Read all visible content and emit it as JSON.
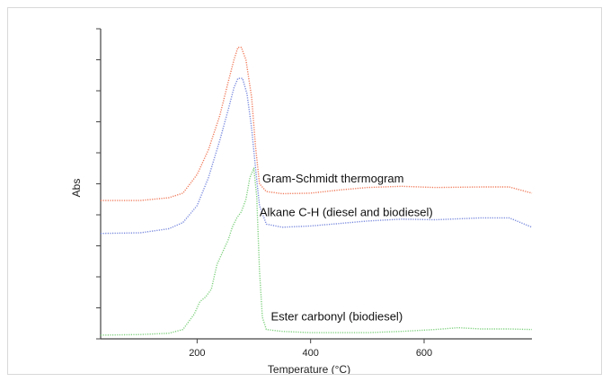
{
  "chart_data": {
    "type": "line",
    "title": "",
    "xlabel": "Temperature (°C)",
    "ylabel": "Abs",
    "xlim": [
      30,
      790
    ],
    "ylim": [
      0,
      1
    ],
    "grid": false,
    "legend": "none",
    "x_ticks": [
      200,
      400,
      600
    ],
    "y_tick_count": 10,
    "series": [
      {
        "name": "Gram-Schmidt thermogram",
        "color": "#f07a5a",
        "points": [
          [
            30,
            0.446
          ],
          [
            100,
            0.446
          ],
          [
            150,
            0.455
          ],
          [
            175,
            0.47
          ],
          [
            200,
            0.53
          ],
          [
            220,
            0.61
          ],
          [
            240,
            0.72
          ],
          [
            255,
            0.83
          ],
          [
            265,
            0.9
          ],
          [
            272,
            0.94
          ],
          [
            278,
            0.94
          ],
          [
            286,
            0.9
          ],
          [
            296,
            0.78
          ],
          [
            303,
            0.62
          ],
          [
            310,
            0.5
          ],
          [
            322,
            0.475
          ],
          [
            350,
            0.468
          ],
          [
            400,
            0.47
          ],
          [
            450,
            0.48
          ],
          [
            500,
            0.488
          ],
          [
            560,
            0.492
          ],
          [
            620,
            0.488
          ],
          [
            700,
            0.49
          ],
          [
            750,
            0.49
          ],
          [
            790,
            0.47
          ]
        ]
      },
      {
        "name": "Alkane C-H (diesel and biodiesel)",
        "color": "#7788dd",
        "points": [
          [
            30,
            0.34
          ],
          [
            100,
            0.342
          ],
          [
            150,
            0.355
          ],
          [
            175,
            0.375
          ],
          [
            200,
            0.43
          ],
          [
            220,
            0.52
          ],
          [
            240,
            0.64
          ],
          [
            255,
            0.74
          ],
          [
            265,
            0.81
          ],
          [
            272,
            0.84
          ],
          [
            280,
            0.84
          ],
          [
            288,
            0.79
          ],
          [
            296,
            0.68
          ],
          [
            304,
            0.53
          ],
          [
            310,
            0.43
          ],
          [
            322,
            0.37
          ],
          [
            350,
            0.36
          ],
          [
            400,
            0.364
          ],
          [
            450,
            0.372
          ],
          [
            500,
            0.38
          ],
          [
            560,
            0.386
          ],
          [
            620,
            0.384
          ],
          [
            700,
            0.39
          ],
          [
            750,
            0.39
          ],
          [
            790,
            0.36
          ]
        ]
      },
      {
        "name": "Ester carbonyl (biodiesel)",
        "color": "#7ed07e",
        "points": [
          [
            30,
            0.012
          ],
          [
            100,
            0.014
          ],
          [
            150,
            0.018
          ],
          [
            175,
            0.03
          ],
          [
            195,
            0.08
          ],
          [
            205,
            0.12
          ],
          [
            215,
            0.135
          ],
          [
            225,
            0.16
          ],
          [
            235,
            0.24
          ],
          [
            245,
            0.28
          ],
          [
            255,
            0.32
          ],
          [
            262,
            0.36
          ],
          [
            270,
            0.39
          ],
          [
            278,
            0.41
          ],
          [
            286,
            0.45
          ],
          [
            293,
            0.52
          ],
          [
            300,
            0.55
          ],
          [
            305,
            0.46
          ],
          [
            310,
            0.22
          ],
          [
            315,
            0.07
          ],
          [
            322,
            0.03
          ],
          [
            350,
            0.024
          ],
          [
            400,
            0.02
          ],
          [
            450,
            0.02
          ],
          [
            500,
            0.02
          ],
          [
            560,
            0.024
          ],
          [
            620,
            0.03
          ],
          [
            660,
            0.036
          ],
          [
            700,
            0.032
          ],
          [
            750,
            0.032
          ],
          [
            790,
            0.03
          ]
        ]
      }
    ]
  }
}
